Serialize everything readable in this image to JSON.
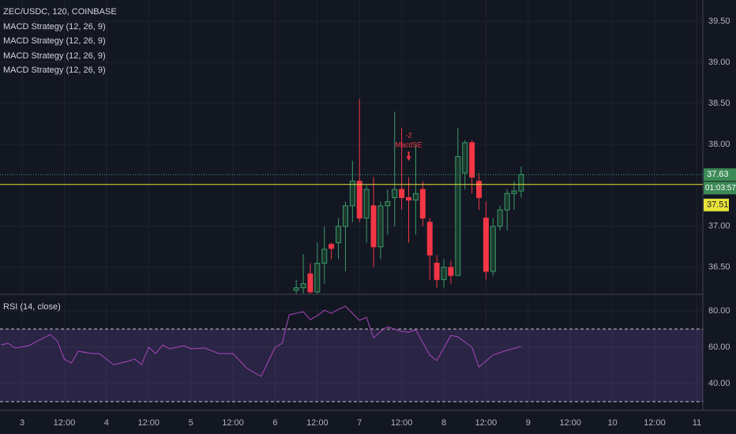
{
  "chart_data": [
    {
      "type": "candlestick",
      "title": "ZEC/USDC, 120, COINBASE",
      "indicators": [
        "MACD Strategy (12, 26, 9)",
        "MACD Strategy (12, 26, 9)",
        "MACD Strategy (12, 26, 9)",
        "MACD Strategy (12, 26, 9)"
      ],
      "x": [
        78,
        80,
        82,
        84,
        86,
        88,
        90,
        92,
        94,
        96,
        98,
        100,
        102,
        104,
        106,
        108,
        110,
        112,
        114,
        116,
        118,
        120,
        122,
        124,
        126,
        128,
        130,
        132,
        134,
        136,
        138,
        140,
        142
      ],
      "open": [
        36.22,
        36.25,
        36.42,
        36.2,
        36.55,
        36.78,
        36.8,
        37.0,
        37.25,
        37.55,
        37.1,
        37.25,
        36.75,
        37.25,
        37.35,
        37.45,
        37.35,
        37.32,
        37.45,
        37.05,
        36.55,
        36.35,
        36.5,
        36.4,
        37.65,
        38.02,
        37.55,
        37.1,
        36.45,
        37.0,
        37.2,
        37.4,
        37.43
      ],
      "high": [
        36.35,
        36.66,
        36.55,
        36.8,
        37.0,
        36.8,
        37.1,
        37.3,
        37.8,
        38.55,
        37.5,
        37.6,
        37.3,
        37.45,
        38.4,
        38.2,
        37.6,
        38.0,
        37.55,
        37.1,
        36.65,
        36.6,
        36.58,
        38.2,
        38.05,
        38.05,
        37.65,
        37.3,
        37.1,
        37.25,
        37.45,
        37.55,
        37.73
      ],
      "low": [
        36.18,
        36.18,
        36.18,
        36.18,
        36.3,
        36.6,
        36.6,
        36.45,
        37.05,
        37.05,
        36.8,
        36.5,
        36.6,
        36.9,
        37.0,
        37.2,
        36.8,
        36.9,
        37.0,
        36.35,
        36.25,
        36.25,
        36.3,
        36.4,
        37.45,
        37.4,
        37.2,
        36.35,
        36.4,
        36.95,
        36.95,
        37.2,
        37.35
      ],
      "close": [
        36.25,
        36.3,
        36.2,
        36.55,
        36.72,
        36.73,
        37.0,
        37.25,
        37.55,
        37.1,
        37.45,
        36.75,
        37.25,
        37.3,
        37.45,
        37.35,
        37.32,
        37.4,
        37.1,
        36.65,
        36.35,
        36.5,
        36.4,
        37.85,
        38.02,
        37.6,
        37.35,
        36.45,
        37.0,
        37.2,
        37.4,
        37.43,
        37.63
      ],
      "up_color": "#3c9a6a",
      "down_color": "#f23645",
      "ylim": [
        36.18,
        39.76
      ],
      "yticks": [
        {
          "value": 36.5,
          "label": "36.50"
        },
        {
          "value": 37,
          "label": "37.00"
        },
        {
          "value": 38,
          "label": "38.00"
        },
        {
          "value": 38.5,
          "label": "38.50"
        },
        {
          "value": 39,
          "label": "39.00"
        },
        {
          "value": 39.5,
          "label": "39.50"
        }
      ],
      "xlim": [
        -6.3,
        193.7
      ],
      "last_price": {
        "value": 37.63,
        "label": "37.63"
      },
      "countdown": "01:03:57",
      "position_price": {
        "value": 37.51,
        "label": "37.51"
      },
      "signal": {
        "x": 110,
        "qty": "-2",
        "label": "MacdSE"
      },
      "grid": true
    },
    {
      "type": "line",
      "title": "RSI (14, close)",
      "color": "#ab47bc",
      "x": [
        -6,
        -4,
        -2,
        2,
        4,
        8,
        10,
        12,
        14,
        16,
        20,
        22,
        26,
        30,
        32,
        34,
        36,
        38,
        40,
        42,
        46,
        48,
        52,
        56,
        60,
        64,
        68,
        72,
        74,
        76,
        80,
        82,
        84,
        86,
        88,
        90,
        92,
        96,
        98,
        100,
        102,
        104,
        108,
        110,
        112,
        116,
        118,
        122,
        124,
        128,
        130,
        134,
        138,
        142
      ],
      "values": [
        61.3,
        62.2,
        59.6,
        60.9,
        63.0,
        67.0,
        63.5,
        53.5,
        51.3,
        57.8,
        56.5,
        56.5,
        50.4,
        52.2,
        53.5,
        50.4,
        60,
        56.5,
        61.3,
        59.1,
        60.9,
        59.1,
        59.6,
        56.5,
        56.5,
        48.3,
        43.9,
        60,
        62.2,
        77.8,
        79.6,
        75.2,
        77.4,
        80.4,
        78.7,
        80.9,
        82.6,
        74.8,
        76.5,
        65.2,
        68.7,
        71.3,
        68.7,
        68.3,
        69.6,
        55.7,
        52.6,
        66.5,
        65.7,
        60,
        49.1,
        55.7,
        58.3,
        60.4
      ],
      "upper_band": 70,
      "lower_band": 30,
      "ylim": [
        25.2,
        87
      ],
      "yticks": [
        {
          "value": 40,
          "label": "40.00"
        },
        {
          "value": 60,
          "label": "60.00"
        },
        {
          "value": 80,
          "label": "80.00"
        }
      ],
      "xlim": [
        -6.3,
        193.7
      ],
      "xticks": [
        {
          "value": 0,
          "label": "3"
        },
        {
          "value": 12,
          "label": "12:00"
        },
        {
          "value": 24,
          "label": "4"
        },
        {
          "value": 36,
          "label": "12:00"
        },
        {
          "value": 48,
          "label": "5"
        },
        {
          "value": 60,
          "label": "12:00"
        },
        {
          "value": 72,
          "label": "6"
        },
        {
          "value": 84,
          "label": "12:00"
        },
        {
          "value": 96,
          "label": "7"
        },
        {
          "value": 108,
          "label": "12:00"
        },
        {
          "value": 120,
          "label": "8"
        },
        {
          "value": 132,
          "label": "12:00"
        },
        {
          "value": 144,
          "label": "9"
        },
        {
          "value": 156,
          "label": "12:00"
        },
        {
          "value": 168,
          "label": "10"
        },
        {
          "value": 180,
          "label": "12:00"
        },
        {
          "value": 192,
          "label": "11"
        }
      ],
      "grid": true
    }
  ]
}
